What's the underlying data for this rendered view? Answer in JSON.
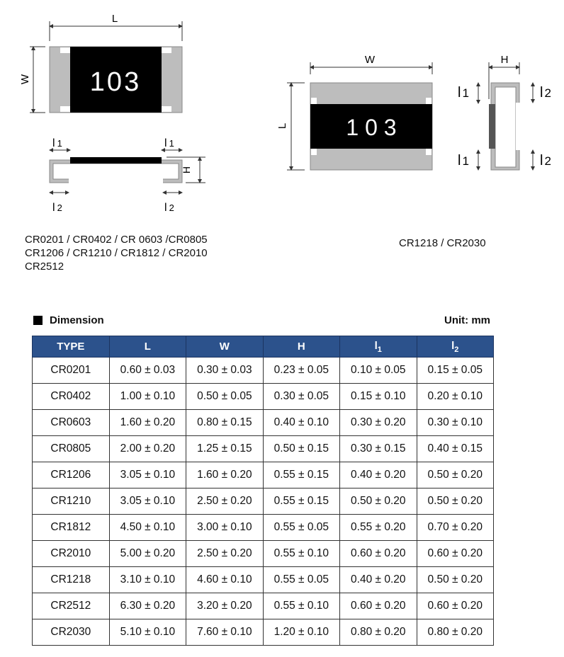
{
  "diagram_left": {
    "marking": "103",
    "labels": {
      "L": "L",
      "W": "W",
      "H": "H",
      "l1": "l",
      "l1_sub": "1",
      "l2": "l",
      "l2_sub": "2"
    },
    "caption": [
      "CR0201 / CR0402 / CR 0603 /CR0805",
      "CR1206 / CR1210 / CR1812 / CR2010",
      "CR2512"
    ]
  },
  "diagram_right": {
    "marking": "1 0 3",
    "labels": {
      "L": "L",
      "W": "W",
      "H": "H",
      "l1": "l",
      "l1_sub": "1",
      "l2": "l",
      "l2_sub": "2"
    },
    "caption": "CR1218 / CR2030"
  },
  "section": {
    "title": "Dimension",
    "unit": "Unit: mm"
  },
  "table": {
    "headers": [
      "TYPE",
      "L",
      "W",
      "H",
      "l",
      "l"
    ],
    "header_subs": [
      "",
      "",
      "",
      "",
      "1",
      "2"
    ],
    "header_color": "#2c528c",
    "rows": [
      [
        "CR0201",
        "0.60 ± 0.03",
        "0.30 ± 0.03",
        "0.23 ± 0.05",
        "0.10 ± 0.05",
        "0.15 ± 0.05"
      ],
      [
        "CR0402",
        "1.00 ± 0.10",
        "0.50 ± 0.05",
        "0.30 ± 0.05",
        "0.15 ± 0.10",
        "0.20 ± 0.10"
      ],
      [
        "CR0603",
        "1.60 ± 0.20",
        "0.80 ± 0.15",
        "0.40 ± 0.10",
        "0.30 ± 0.20",
        "0.30 ± 0.10"
      ],
      [
        "CR0805",
        "2.00 ± 0.20",
        "1.25 ± 0.15",
        "0.50 ± 0.15",
        "0.30 ± 0.15",
        "0.40 ± 0.15"
      ],
      [
        "CR1206",
        "3.05 ± 0.10",
        "1.60 ± 0.20",
        "0.55 ± 0.15",
        "0.40 ± 0.20",
        "0.50 ± 0.20"
      ],
      [
        "CR1210",
        "3.05 ± 0.10",
        "2.50 ± 0.20",
        "0.55 ± 0.15",
        "0.50 ± 0.20",
        "0.50 ± 0.20"
      ],
      [
        "CR1812",
        "4.50 ± 0.10",
        "3.00 ± 0.10",
        "0.55 ± 0.05",
        "0.55 ± 0.20",
        "0.70 ± 0.20"
      ],
      [
        "CR2010",
        "5.00 ± 0.20",
        "2.50 ± 0.20",
        "0.55 ± 0.10",
        "0.60 ± 0.20",
        "0.60 ± 0.20"
      ],
      [
        "CR1218",
        "3.10 ± 0.10",
        "4.60 ± 0.10",
        "0.55 ± 0.05",
        "0.40 ± 0.20",
        "0.50 ± 0.20"
      ],
      [
        "CR2512",
        "6.30 ± 0.20",
        "3.20 ± 0.20",
        "0.55 ± 0.10",
        "0.60 ± 0.20",
        "0.60 ± 0.20"
      ],
      [
        "CR2030",
        "5.10 ± 0.10",
        "7.60 ± 0.10",
        "1.20 ± 0.10",
        "0.80 ± 0.20",
        "0.80 ± 0.20"
      ]
    ]
  }
}
